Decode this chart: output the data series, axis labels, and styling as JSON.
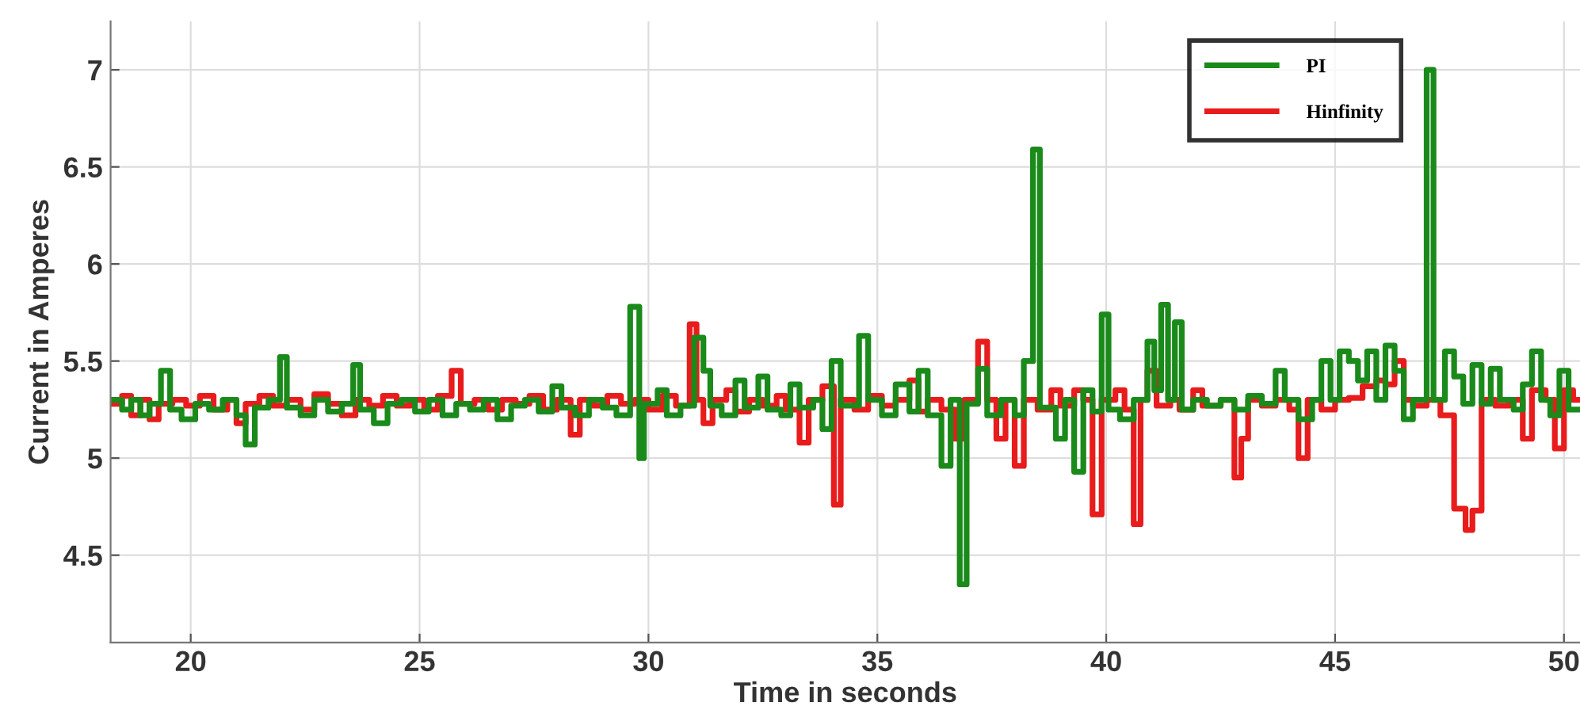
{
  "chart_data": {
    "type": "step",
    "xlabel": "Time in seconds",
    "ylabel": "Current in Amperes",
    "xlim": [
      18.25,
      50.35
    ],
    "ylim": [
      4.05,
      7.25
    ],
    "xticks": [
      20,
      25,
      30,
      35,
      40,
      45,
      50
    ],
    "yticks": [
      4.5,
      5,
      5.5,
      6,
      6.5,
      7
    ],
    "grid": true,
    "legend": "top right",
    "marker": "none",
    "line_style": "solid",
    "series": [
      {
        "name": "Hinfinity",
        "color": "#e81c1c",
        "x": [
          18.25,
          18.5,
          18.7,
          18.9,
          19.1,
          19.3,
          19.6,
          19.9,
          20.2,
          20.5,
          20.8,
          21.0,
          21.2,
          21.5,
          21.8,
          22.1,
          22.4,
          22.7,
          23.0,
          23.3,
          23.6,
          23.9,
          24.2,
          24.5,
          24.8,
          25.1,
          25.4,
          25.7,
          25.9,
          26.2,
          26.5,
          26.8,
          27.1,
          27.4,
          27.7,
          28.0,
          28.3,
          28.5,
          28.8,
          29.1,
          29.4,
          29.7,
          30.0,
          30.3,
          30.6,
          30.9,
          31.05,
          31.2,
          31.4,
          31.7,
          31.9,
          32.2,
          32.5,
          32.8,
          33.0,
          33.3,
          33.5,
          33.8,
          34.05,
          34.2,
          34.5,
          34.8,
          35.1,
          35.4,
          35.7,
          35.9,
          36.1,
          36.4,
          36.7,
          36.9,
          37.2,
          37.4,
          37.6,
          37.8,
          38.0,
          38.2,
          38.5,
          38.8,
          39.0,
          39.3,
          39.5,
          39.7,
          39.9,
          40.2,
          40.4,
          40.6,
          40.75,
          40.9,
          41.1,
          41.4,
          41.6,
          41.9,
          42.1,
          42.5,
          42.8,
          42.95,
          43.1,
          43.4,
          43.7,
          44.0,
          44.2,
          44.4,
          44.7,
          45.0,
          45.3,
          45.6,
          45.9,
          46.1,
          46.3,
          46.5,
          46.7,
          47.0,
          47.3,
          47.6,
          47.85,
          48.0,
          48.2,
          48.5,
          48.8,
          49.1,
          49.3,
          49.6,
          49.8,
          50.0,
          50.2,
          50.35
        ],
        "values": [
          5.28,
          5.32,
          5.22,
          5.3,
          5.2,
          5.28,
          5.3,
          5.27,
          5.32,
          5.25,
          5.3,
          5.18,
          5.28,
          5.32,
          5.27,
          5.3,
          5.25,
          5.33,
          5.28,
          5.22,
          5.3,
          5.27,
          5.32,
          5.27,
          5.3,
          5.25,
          5.32,
          5.45,
          5.28,
          5.3,
          5.25,
          5.3,
          5.28,
          5.32,
          5.25,
          5.3,
          5.12,
          5.3,
          5.27,
          5.32,
          5.28,
          5.3,
          5.25,
          5.32,
          5.27,
          5.69,
          5.3,
          5.18,
          5.3,
          5.35,
          5.24,
          5.3,
          5.27,
          5.32,
          5.25,
          5.08,
          5.3,
          5.37,
          4.76,
          5.3,
          5.25,
          5.32,
          5.27,
          5.3,
          5.4,
          5.24,
          5.3,
          5.25,
          5.1,
          5.3,
          5.6,
          5.3,
          5.1,
          5.3,
          4.96,
          5.3,
          5.25,
          5.35,
          5.27,
          5.35,
          5.3,
          4.71,
          5.3,
          5.35,
          5.25,
          4.66,
          5.3,
          5.45,
          5.27,
          5.3,
          5.25,
          5.35,
          5.27,
          5.3,
          4.9,
          5.1,
          5.3,
          5.27,
          5.3,
          5.25,
          5.0,
          5.3,
          5.25,
          5.3,
          5.31,
          5.37,
          5.4,
          5.38,
          5.5,
          5.3,
          5.27,
          5.3,
          5.22,
          4.74,
          4.63,
          4.73,
          5.3,
          5.27,
          5.3,
          5.1,
          5.35,
          5.3,
          5.05,
          5.35,
          5.3,
          5.3
        ]
      },
      {
        "name": "PI",
        "color": "#1a8a1a",
        "x": [
          18.25,
          18.5,
          18.7,
          18.9,
          19.1,
          19.35,
          19.55,
          19.8,
          20.1,
          20.4,
          20.7,
          21.0,
          21.2,
          21.4,
          21.7,
          21.95,
          22.1,
          22.4,
          22.7,
          23.0,
          23.3,
          23.55,
          23.7,
          24.0,
          24.3,
          24.6,
          24.9,
          25.2,
          25.5,
          25.8,
          26.1,
          26.4,
          26.7,
          27.0,
          27.3,
          27.6,
          27.9,
          28.1,
          28.4,
          28.7,
          29.0,
          29.3,
          29.6,
          29.8,
          29.9,
          30.2,
          30.4,
          30.7,
          31.0,
          31.2,
          31.35,
          31.6,
          31.9,
          32.1,
          32.4,
          32.6,
          32.9,
          33.1,
          33.3,
          33.6,
          33.8,
          34.0,
          34.2,
          34.6,
          34.8,
          35.1,
          35.4,
          35.7,
          35.9,
          36.1,
          36.4,
          36.6,
          36.8,
          36.95,
          37.2,
          37.4,
          37.7,
          38.0,
          38.2,
          38.4,
          38.55,
          38.9,
          39.1,
          39.3,
          39.5,
          39.7,
          39.9,
          40.05,
          40.3,
          40.6,
          40.9,
          41.05,
          41.2,
          41.35,
          41.5,
          41.65,
          41.9,
          42.2,
          42.5,
          42.8,
          43.1,
          43.4,
          43.7,
          43.9,
          44.2,
          44.5,
          44.7,
          44.9,
          45.1,
          45.3,
          45.5,
          45.7,
          45.9,
          46.1,
          46.3,
          46.5,
          46.7,
          47.0,
          47.15,
          47.4,
          47.6,
          47.8,
          48.0,
          48.2,
          48.4,
          48.6,
          48.9,
          49.1,
          49.3,
          49.5,
          49.7,
          49.9,
          50.1,
          50.35
        ],
        "values": [
          5.3,
          5.25,
          5.3,
          5.22,
          5.28,
          5.45,
          5.25,
          5.2,
          5.28,
          5.25,
          5.3,
          5.22,
          5.07,
          5.26,
          5.3,
          5.52,
          5.26,
          5.22,
          5.3,
          5.24,
          5.28,
          5.48,
          5.25,
          5.18,
          5.28,
          5.3,
          5.24,
          5.3,
          5.22,
          5.28,
          5.25,
          5.3,
          5.2,
          5.27,
          5.3,
          5.24,
          5.37,
          5.26,
          5.22,
          5.3,
          5.26,
          5.22,
          5.78,
          5.0,
          5.28,
          5.35,
          5.22,
          5.27,
          5.62,
          5.45,
          5.27,
          5.22,
          5.4,
          5.26,
          5.42,
          5.25,
          5.22,
          5.38,
          5.26,
          5.3,
          5.15,
          5.5,
          5.27,
          5.63,
          5.3,
          5.22,
          5.38,
          5.24,
          5.45,
          5.22,
          4.96,
          5.3,
          4.35,
          5.28,
          5.46,
          5.22,
          5.3,
          5.22,
          5.5,
          6.59,
          5.26,
          5.1,
          5.3,
          4.93,
          5.35,
          5.24,
          5.74,
          5.25,
          5.2,
          5.3,
          5.6,
          5.35,
          5.79,
          5.3,
          5.7,
          5.25,
          5.3,
          5.27,
          5.3,
          5.25,
          5.32,
          5.28,
          5.45,
          5.3,
          5.2,
          5.3,
          5.5,
          5.3,
          5.55,
          5.5,
          5.4,
          5.55,
          5.3,
          5.58,
          5.45,
          5.2,
          5.3,
          7.0,
          5.3,
          5.55,
          5.42,
          5.28,
          5.48,
          5.28,
          5.46,
          5.3,
          5.25,
          5.38,
          5.55,
          5.3,
          5.22,
          5.45,
          5.25,
          5.25
        ]
      }
    ]
  }
}
